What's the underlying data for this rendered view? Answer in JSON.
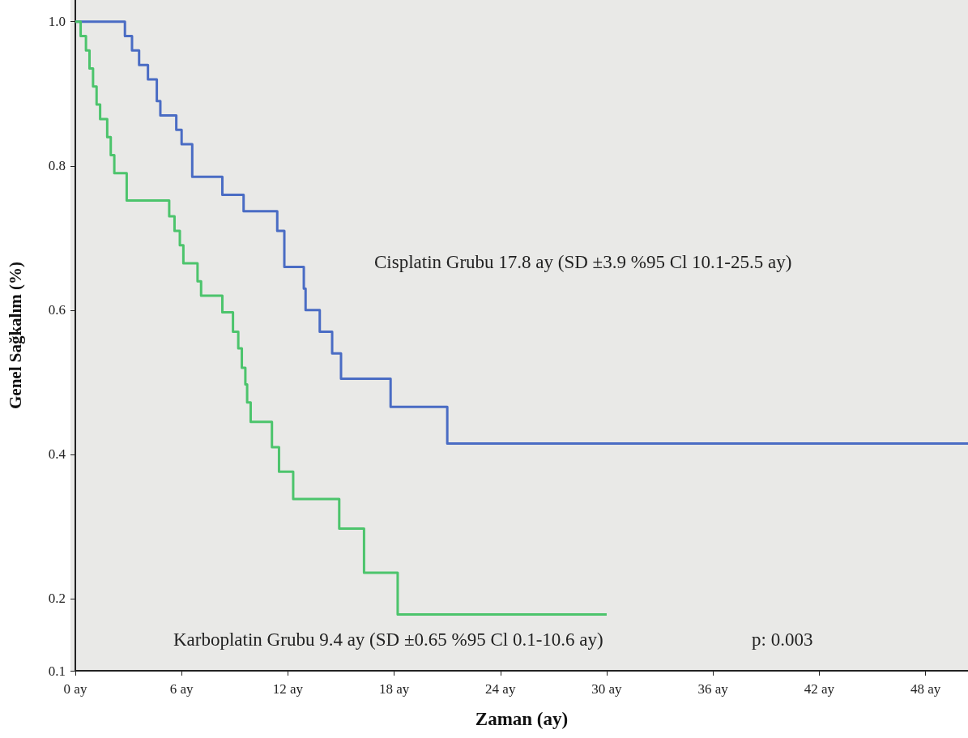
{
  "chart_data": {
    "type": "step",
    "xlabel": "Zaman (ay)",
    "ylabel": "Genel Sağkalım (%)",
    "xlim": [
      0,
      50.4
    ],
    "ylim": [
      0.1,
      1.03
    ],
    "xticks": [
      {
        "value": 0,
        "label": "0 ay"
      },
      {
        "value": 6,
        "label": "6 ay"
      },
      {
        "value": 12,
        "label": "12 ay"
      },
      {
        "value": 18,
        "label": "18 ay"
      },
      {
        "value": 24,
        "label": "24 ay"
      },
      {
        "value": 30,
        "label": "30 ay"
      },
      {
        "value": 36,
        "label": "36 ay"
      },
      {
        "value": 42,
        "label": "42 ay"
      },
      {
        "value": 48,
        "label": "48 ay"
      }
    ],
    "yticks": [
      0.1,
      0.2,
      0.4,
      0.6,
      0.8,
      {
        "value": 1.0,
        "label": "1.0"
      }
    ],
    "grid": false,
    "marker": "none",
    "line_style": "solid",
    "series": [
      {
        "color": "#4a6cc4",
        "x": [
          0,
          2.8,
          3.2,
          3.6,
          4.1,
          4.6,
          4.8,
          5.7,
          6.0,
          6.6,
          8.3,
          9.5,
          11.4,
          11.8,
          12.9,
          13.0,
          13.8,
          14.5,
          15.0,
          17.8,
          21.0,
          50.4
        ],
        "values": [
          1.0,
          0.98,
          0.96,
          0.94,
          0.92,
          0.89,
          0.87,
          0.85,
          0.83,
          0.785,
          0.76,
          0.737,
          0.71,
          0.66,
          0.63,
          0.6,
          0.57,
          0.54,
          0.505,
          0.466,
          0.415,
          0.415
        ]
      },
      {
        "color": "#4cc46c",
        "x": [
          0,
          0.3,
          0.6,
          0.8,
          1.0,
          1.2,
          1.4,
          1.8,
          2.0,
          2.2,
          2.9,
          5.3,
          5.6,
          5.9,
          6.1,
          6.9,
          7.1,
          8.3,
          8.9,
          9.2,
          9.4,
          9.6,
          9.7,
          9.9,
          11.1,
          11.5,
          12.3,
          14.9,
          16.3,
          18.2,
          30.0
        ],
        "values": [
          1.0,
          0.98,
          0.96,
          0.935,
          0.91,
          0.885,
          0.865,
          0.84,
          0.815,
          0.79,
          0.752,
          0.73,
          0.71,
          0.69,
          0.665,
          0.64,
          0.62,
          0.597,
          0.57,
          0.547,
          0.52,
          0.497,
          0.472,
          0.445,
          0.41,
          0.376,
          0.338,
          0.297,
          0.236,
          0.178,
          0.178
        ]
      }
    ],
    "annotations": [
      "Cisplatin Grubu 17.8 ay (SD ±3.9 %95 Cl 10.1-25.5 ay)",
      "Karboplatin Grubu 9.4 ay (SD ±0.65 %95 Cl 0.1-10.6 ay)",
      "p: 0.003"
    ]
  }
}
